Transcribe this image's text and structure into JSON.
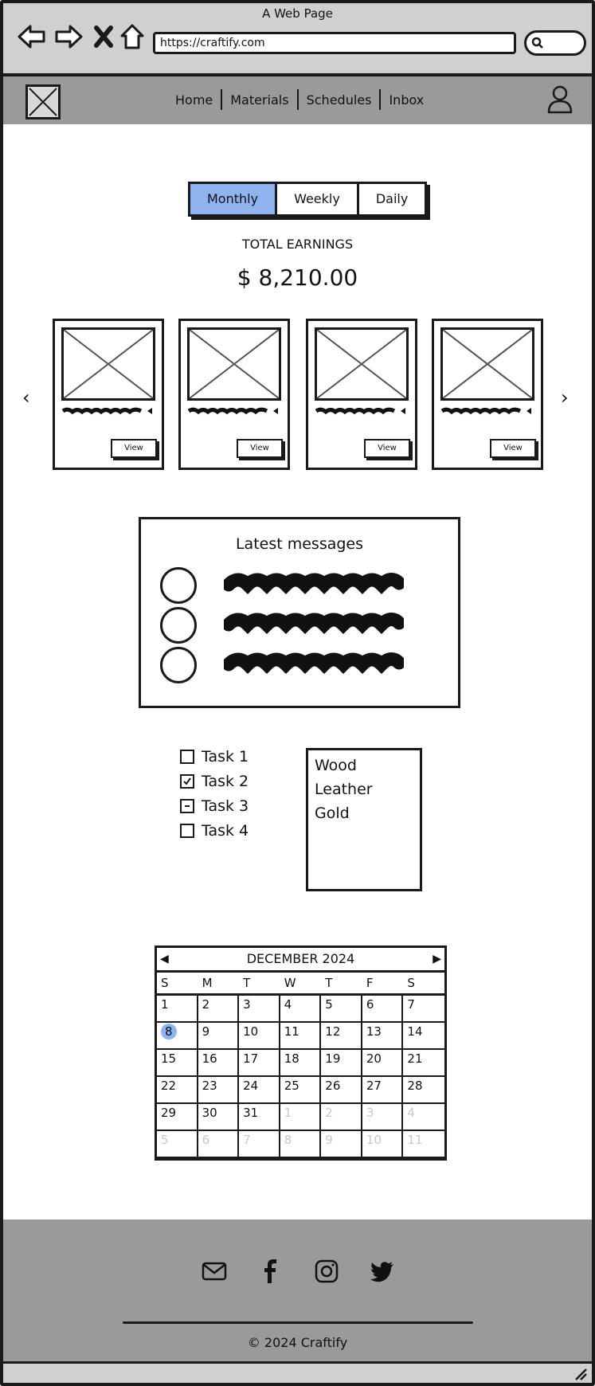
{
  "window": {
    "title": "A Web Page",
    "url": "https://craftify.com"
  },
  "nav": {
    "items": [
      "Home",
      "Materials",
      "Schedules",
      "Inbox"
    ]
  },
  "periods": {
    "options": [
      "Monthly",
      "Weekly",
      "Daily"
    ],
    "selected": "Monthly"
  },
  "earnings": {
    "label": "TOTAL EARNINGS",
    "value": "$ 8,210.00"
  },
  "carousel": {
    "cards": [
      {
        "button": "View"
      },
      {
        "button": "View"
      },
      {
        "button": "View"
      },
      {
        "button": "View"
      }
    ]
  },
  "messages": {
    "title": "Latest messages",
    "count": 3
  },
  "tasks": [
    {
      "label": "Task 1",
      "state": "unchecked"
    },
    {
      "label": "Task 2",
      "state": "checked"
    },
    {
      "label": "Task 3",
      "state": "indeterminate"
    },
    {
      "label": "Task 4",
      "state": "unchecked"
    }
  ],
  "materials": [
    "Wood",
    "Leather",
    "Gold"
  ],
  "calendar": {
    "month": "DECEMBER 2024",
    "weekdays": [
      "S",
      "M",
      "T",
      "W",
      "T",
      "F",
      "S"
    ],
    "selected_day": "8",
    "days": [
      "1",
      "2",
      "3",
      "4",
      "5",
      "6",
      "7",
      "8",
      "9",
      "10",
      "11",
      "12",
      "13",
      "14",
      "15",
      "16",
      "17",
      "18",
      "19",
      "20",
      "21",
      "22",
      "23",
      "24",
      "25",
      "26",
      "27",
      "28",
      "29",
      "30",
      "31",
      "1",
      "2",
      "3",
      "4",
      "5",
      "6",
      "7",
      "8",
      "9",
      "10",
      "11"
    ]
  },
  "footer": {
    "icons": [
      "mail-icon",
      "facebook-icon",
      "instagram-icon",
      "twitter-icon"
    ],
    "copyright": "© 2024 Craftify"
  },
  "colors": {
    "accent": "#8fb4ef",
    "gray": "#9a9a9a",
    "chrome": "#d0d0d0"
  }
}
